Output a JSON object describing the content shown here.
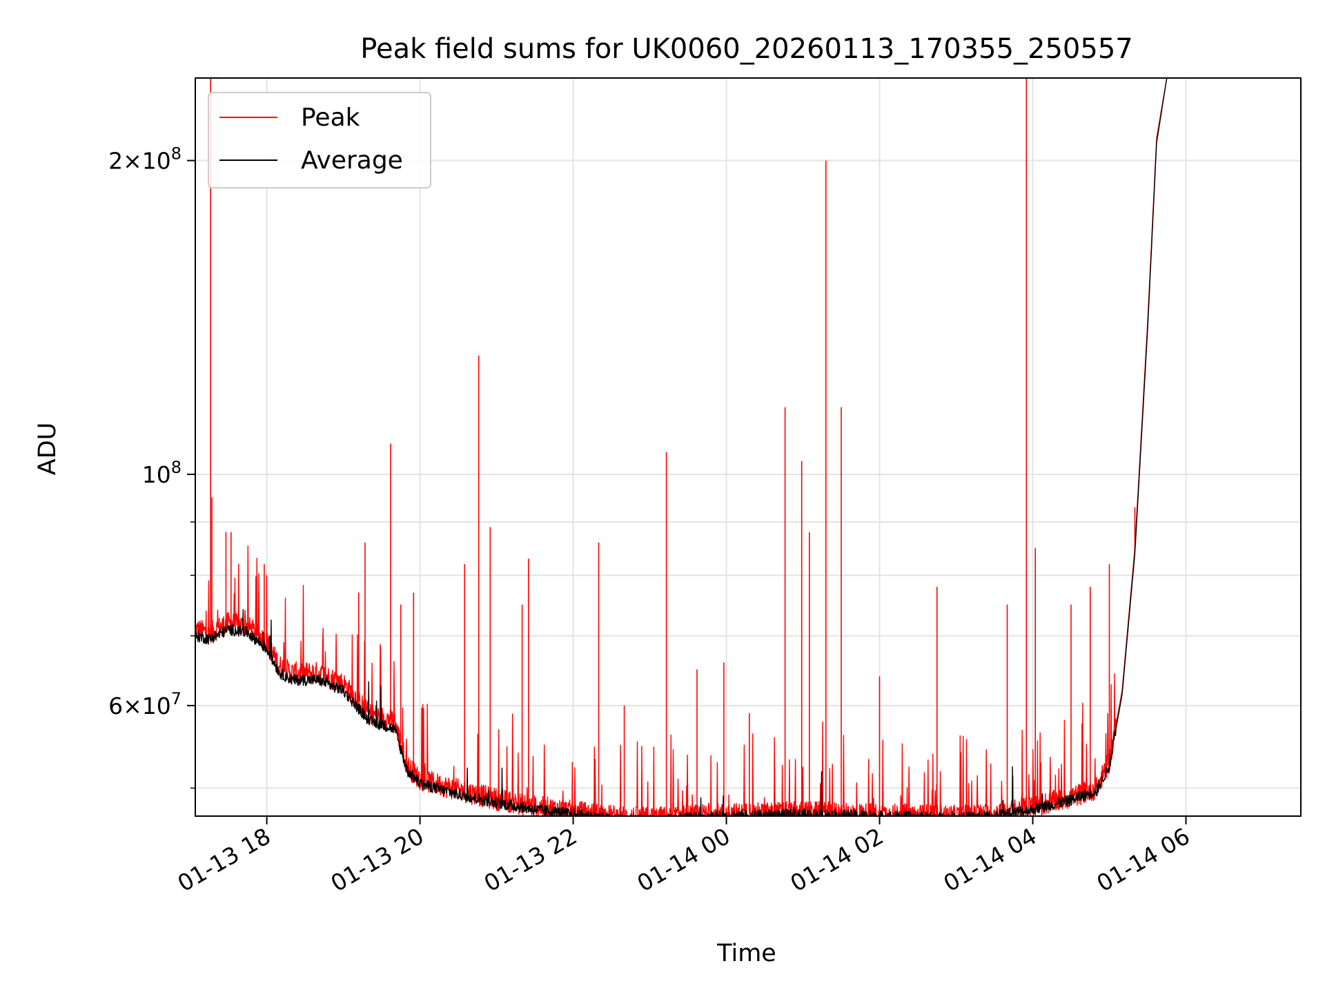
{
  "chart_data": {
    "type": "line",
    "title": "Peak field sums for UK0060_20260113_170355_250557",
    "xlabel": "Time",
    "ylabel": "ADU",
    "x_scale": "time",
    "y_scale": "log",
    "xlim": [
      "2026-01-13 17:04",
      "2026-01-14 07:30"
    ],
    "ylim": [
      47000000,
      240000000
    ],
    "x_ticks": [
      {
        "value": "2026-01-13 18:00",
        "label": "01-13 18"
      },
      {
        "value": "2026-01-13 20:00",
        "label": "01-13 20"
      },
      {
        "value": "2026-01-13 22:00",
        "label": "01-13 22"
      },
      {
        "value": "2026-01-14 00:00",
        "label": "01-14 00"
      },
      {
        "value": "2026-01-14 02:00",
        "label": "01-14 02"
      },
      {
        "value": "2026-01-14 04:00",
        "label": "01-14 04"
      },
      {
        "value": "2026-01-14 06:00",
        "label": "01-14 06"
      }
    ],
    "y_major_ticks": [
      {
        "value": 60000000,
        "base": "6×10",
        "exp": "7"
      },
      {
        "value": 100000000,
        "base": "10",
        "exp": "8"
      },
      {
        "value": 200000000,
        "base": "2×10",
        "exp": "8"
      }
    ],
    "y_minor_ticks": [
      50000000,
      70000000,
      80000000,
      90000000
    ],
    "grid": true,
    "legend": {
      "placement": "top-left"
    },
    "series": [
      {
        "name": "Peak",
        "color": "#ff0000",
        "x": [
          "2026-01-13 17:04",
          "2026-01-13 17:15",
          "2026-01-13 17:30",
          "2026-01-13 17:45",
          "2026-01-13 18:00",
          "2026-01-13 18:10",
          "2026-01-13 18:20",
          "2026-01-13 18:40",
          "2026-01-13 19:00",
          "2026-01-13 19:20",
          "2026-01-13 19:40",
          "2026-01-13 19:50",
          "2026-01-13 20:00",
          "2026-01-13 20:30",
          "2026-01-13 21:00",
          "2026-01-13 21:30",
          "2026-01-13 22:00",
          "2026-01-13 22:30",
          "2026-01-13 23:00",
          "2026-01-13 23:30",
          "2026-01-14 00:00",
          "2026-01-14 00:30",
          "2026-01-14 01:00",
          "2026-01-14 01:30",
          "2026-01-14 02:00",
          "2026-01-14 02:30",
          "2026-01-14 03:00",
          "2026-01-14 03:30",
          "2026-01-14 04:00",
          "2026-01-14 04:30",
          "2026-01-14 04:50",
          "2026-01-14 05:00",
          "2026-01-14 05:10",
          "2026-01-14 05:20",
          "2026-01-14 05:30",
          "2026-01-14 05:37",
          "2026-01-14 05:45"
        ],
        "y": [
          71000000,
          70500000,
          72000000,
          71500000,
          69000000,
          65500000,
          64500000,
          64500000,
          63000000,
          59000000,
          58000000,
          52500000,
          51000000,
          49800000,
          48800000,
          48000000,
          47500000,
          47000000,
          46800000,
          47000000,
          47200000,
          47300000,
          47400000,
          47300000,
          47200000,
          47100000,
          47000000,
          47200000,
          48000000,
          49000000,
          50000000,
          53000000,
          62000000,
          85000000,
          140000000,
          210000000,
          240000000
        ],
        "spikes": [
          {
            "t": "2026-01-13 17:16",
            "v": 240000000
          },
          {
            "t": "2026-01-13 17:17",
            "v": 95000000
          },
          {
            "t": "2026-01-13 17:28",
            "v": 88000000
          },
          {
            "t": "2026-01-13 17:32",
            "v": 88000000
          },
          {
            "t": "2026-01-13 17:58",
            "v": 82000000
          },
          {
            "t": "2026-01-13 19:12",
            "v": 77000000
          },
          {
            "t": "2026-01-13 19:17",
            "v": 86000000
          },
          {
            "t": "2026-01-13 19:37",
            "v": 107000000
          },
          {
            "t": "2026-01-13 19:45",
            "v": 75000000
          },
          {
            "t": "2026-01-13 19:55",
            "v": 77000000
          },
          {
            "t": "2026-01-13 20:35",
            "v": 82000000
          },
          {
            "t": "2026-01-13 20:46",
            "v": 130000000
          },
          {
            "t": "2026-01-13 20:55",
            "v": 89000000
          },
          {
            "t": "2026-01-13 21:20",
            "v": 75000000
          },
          {
            "t": "2026-01-13 21:25",
            "v": 83000000
          },
          {
            "t": "2026-01-13 22:20",
            "v": 86000000
          },
          {
            "t": "2026-01-13 22:40",
            "v": 60000000
          },
          {
            "t": "2026-01-13 23:13",
            "v": 105000000
          },
          {
            "t": "2026-01-13 23:37",
            "v": 65000000
          },
          {
            "t": "2026-01-13 23:58",
            "v": 66000000
          },
          {
            "t": "2026-01-14 00:18",
            "v": 59000000
          },
          {
            "t": "2026-01-14 00:46",
            "v": 116000000
          },
          {
            "t": "2026-01-14 00:59",
            "v": 103000000
          },
          {
            "t": "2026-01-14 01:05",
            "v": 88000000
          },
          {
            "t": "2026-01-14 01:18",
            "v": 200000000
          },
          {
            "t": "2026-01-14 01:30",
            "v": 116000000
          },
          {
            "t": "2026-01-14 02:00",
            "v": 64000000
          },
          {
            "t": "2026-01-14 02:45",
            "v": 78000000
          },
          {
            "t": "2026-01-14 03:40",
            "v": 75000000
          },
          {
            "t": "2026-01-14 03:55",
            "v": 240000000
          },
          {
            "t": "2026-01-14 04:02",
            "v": 85000000
          },
          {
            "t": "2026-01-14 04:30",
            "v": 75000000
          },
          {
            "t": "2026-01-14 04:45",
            "v": 78000000
          },
          {
            "t": "2026-01-14 05:00",
            "v": 82000000
          },
          {
            "t": "2026-01-14 05:20",
            "v": 93000000
          }
        ]
      },
      {
        "name": "Average",
        "color": "#000000",
        "x": [
          "2026-01-13 17:04",
          "2026-01-13 17:15",
          "2026-01-13 17:30",
          "2026-01-13 17:45",
          "2026-01-13 18:00",
          "2026-01-13 18:10",
          "2026-01-13 18:20",
          "2026-01-13 18:40",
          "2026-01-13 19:00",
          "2026-01-13 19:20",
          "2026-01-13 19:40",
          "2026-01-13 19:50",
          "2026-01-13 20:00",
          "2026-01-13 20:30",
          "2026-01-13 21:00",
          "2026-01-13 21:30",
          "2026-01-13 22:00",
          "2026-01-13 22:30",
          "2026-01-13 23:00",
          "2026-01-13 23:30",
          "2026-01-14 00:00",
          "2026-01-14 00:30",
          "2026-01-14 01:00",
          "2026-01-14 01:30",
          "2026-01-14 02:00",
          "2026-01-14 02:30",
          "2026-01-14 03:00",
          "2026-01-14 03:30",
          "2026-01-14 04:00",
          "2026-01-14 04:30",
          "2026-01-14 04:50",
          "2026-01-14 05:00",
          "2026-01-14 05:10",
          "2026-01-14 05:20",
          "2026-01-14 05:30",
          "2026-01-14 05:37",
          "2026-01-14 05:45"
        ],
        "y": [
          70000000,
          69500000,
          71000000,
          70500000,
          68000000,
          64500000,
          63500000,
          63500000,
          62000000,
          58000000,
          57000000,
          52000000,
          50500000,
          49300000,
          48400000,
          47700000,
          47200000,
          46700000,
          46500000,
          46800000,
          47000000,
          47100000,
          47200000,
          47100000,
          47000000,
          46900000,
          46800000,
          47000000,
          47700000,
          48700000,
          49700000,
          52500000,
          61500000,
          84000000,
          138000000,
          208000000,
          240000000
        ]
      }
    ]
  }
}
